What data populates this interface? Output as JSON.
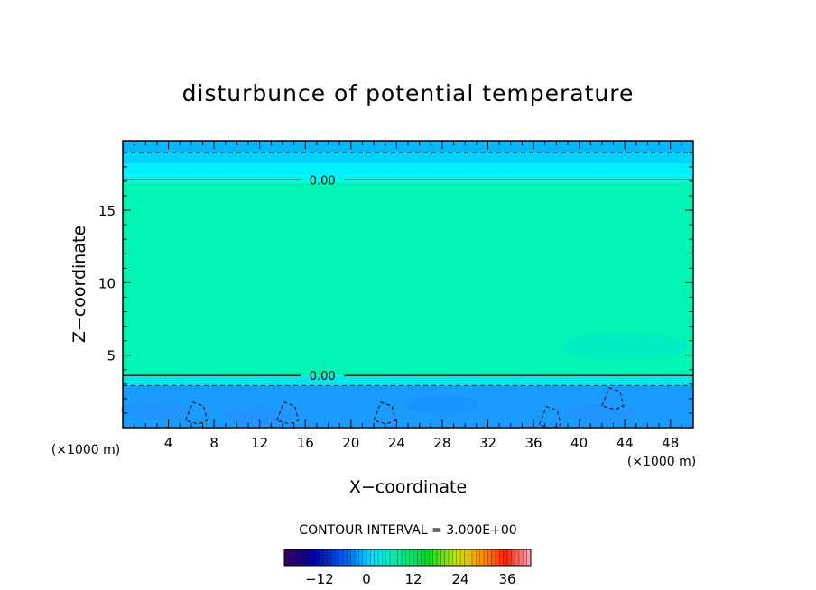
{
  "title": "disturbunce of potential temperature",
  "chart_data": {
    "type": "heatmap",
    "title": "disturbunce of potential temperature",
    "xlabel": "X−coordinate",
    "ylabel": "Z−coordinate",
    "x_units": "(×1000 m)",
    "y_units": "(×1000 m)",
    "xlim": [
      0,
      50
    ],
    "ylim": [
      0,
      19.8
    ],
    "x_ticks": [
      4,
      8,
      12,
      16,
      20,
      24,
      28,
      32,
      36,
      40,
      44,
      48
    ],
    "y_ticks": [
      5,
      10,
      15
    ],
    "contour_interval": "CONTOUR INTERVAL = 3.000E+00",
    "zero_contours": [
      {
        "z": 17.1,
        "label": "0.00",
        "label_x": 17.5
      },
      {
        "z": 3.6,
        "label": "0.00",
        "label_x": 17.5
      }
    ],
    "negative_contours_z": [
      19.0,
      2.9
    ],
    "fill_layers": [
      {
        "z_from": 19.0,
        "z_to": 19.8,
        "color": "#00b8ff"
      },
      {
        "z_from": 18.2,
        "z_to": 19.0,
        "color": "#00d4ff"
      },
      {
        "z_from": 17.4,
        "z_to": 18.2,
        "color": "#00f0ff"
      },
      {
        "z_from": 16.9,
        "z_to": 17.4,
        "color": "#00f8e8"
      },
      {
        "z_from": 3.6,
        "z_to": 16.9,
        "color": "#00f5b5"
      },
      {
        "z_from": 2.9,
        "z_to": 3.6,
        "color": "#00e8e8"
      },
      {
        "z_from": 0,
        "z_to": 2.9,
        "color": "#1a9cff"
      }
    ],
    "colorbar": {
      "ticks": [
        -12,
        0,
        12,
        24,
        36
      ],
      "range": [
        -21,
        42
      ]
    }
  }
}
